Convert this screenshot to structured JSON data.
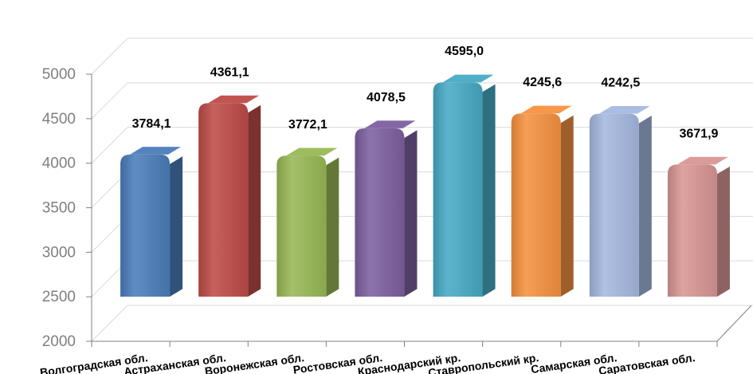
{
  "chart_data": {
    "type": "bar",
    "title": "",
    "xlabel": "",
    "ylabel": "",
    "ylim": [
      2000,
      5000
    ],
    "yticks": [
      2000,
      2500,
      3000,
      3500,
      4000,
      4500,
      5000
    ],
    "ytick_labels": [
      "2000",
      "2500",
      "3000",
      "3500",
      "4000",
      "4500",
      "5000"
    ],
    "grid": true,
    "legend": "none",
    "categories": [
      "Волгоградская обл.",
      "Астраханская обл.",
      "Воронежская обл.",
      "Ростовская обл.",
      "Краснодарский кр.",
      "Ставропольский кр.",
      "Самарская обл.",
      "Саратовская обл."
    ],
    "values": [
      3784.1,
      4361.1,
      3772.1,
      4078.5,
      4595.0,
      4245.6,
      4242.5,
      3671.9
    ],
    "data_labels": [
      "3784,1",
      "4361,1",
      "3772,1",
      "4078,5",
      "4595,0",
      "4245,6",
      "4242,5",
      "3671,9"
    ],
    "colors": [
      "#4a7ebb",
      "#be4b48",
      "#98b954",
      "#7d60a0",
      "#46aac5",
      "#f69240",
      "#a5b9e0",
      "#d99694"
    ]
  }
}
